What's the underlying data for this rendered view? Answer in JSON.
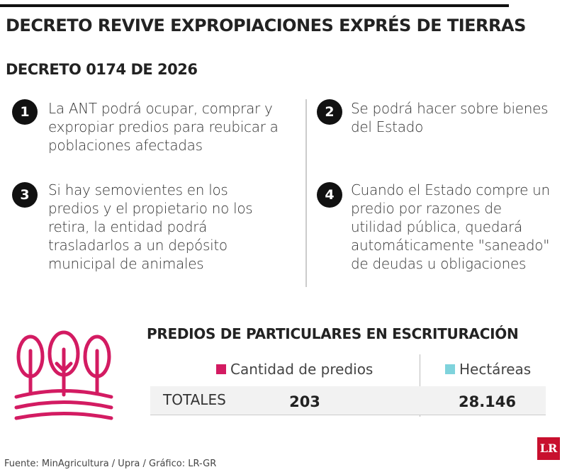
{
  "header": {
    "title": "DECRETO REVIVE EXPROPIACIONES EXPRÉS DE TIERRAS",
    "subtitle": "DECRETO 0174 DE 2026"
  },
  "items": [
    {
      "number": "1",
      "text": "La ANT podrá ocupar, comprar y expropiar predios para reubicar a poblaciones afectadas"
    },
    {
      "number": "2",
      "text": "Se podrá hacer sobre bienes del Estado"
    },
    {
      "number": "3",
      "text": "Si hay semovientes en los predios y el propietario no los retira, la entidad podrá trasladarlos a un depósito municipal de animales"
    },
    {
      "number": "4",
      "text": "Cuando el Estado compre un predio por razones de utilidad pública, quedará automáticamente \"saneado\" de deudas u obligaciones"
    }
  ],
  "table": {
    "title": "PREDIOS DE PARTICULARES EN ESCRITURACIÓN",
    "columns": [
      "Cantidad de predios",
      "Hectáreas"
    ],
    "rows": [
      [
        "TOTALES",
        "203",
        "28.146"
      ]
    ]
  },
  "footer": {
    "source": "Fuente: MinAgricultura / Upra / Gráfico: LR-GR",
    "logo": "LR"
  }
}
